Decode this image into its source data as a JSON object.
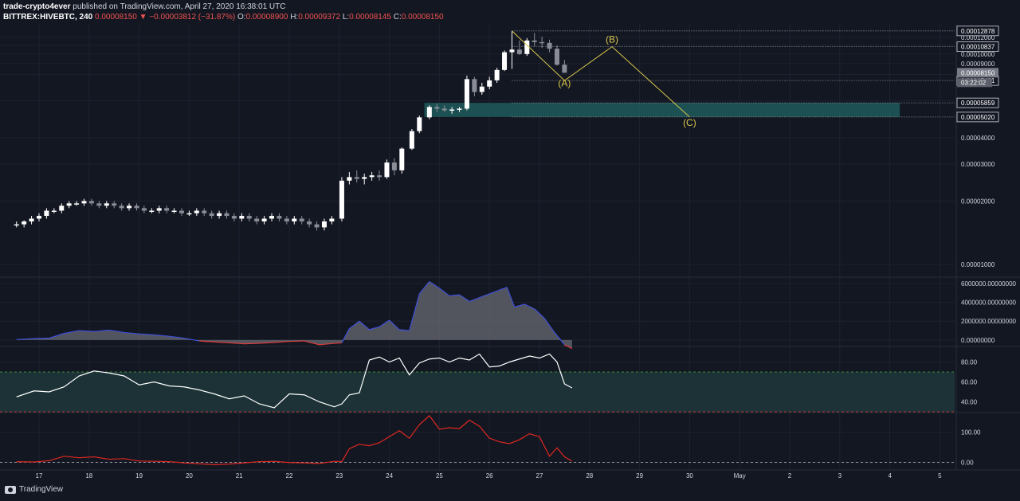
{
  "header": {
    "author": "trade-crypto4ever",
    "published": "published on TradingView.com, April 27, 2020 16:38:01 UTC",
    "symbol": "BITTREX:HIVEBTC, 240",
    "last": "0.00008150",
    "change": "−0.00003812 (−31.87%)",
    "o_label": "O:",
    "o": "0.00008900",
    "h_label": "H:",
    "h": "0.00009372",
    "l_label": "L:",
    "l": "0.00008145",
    "c_label": "C:",
    "c": "0.00008150"
  },
  "footer": {
    "brand": "TradingView"
  },
  "colors": {
    "background": "#131722",
    "grid": "#1e2230",
    "candle_up": "#ffffff",
    "candle_down": "#8a8d96",
    "wave": "#d9c64b",
    "zone": "#1e5a5c",
    "macd_area": "#5f6068",
    "macd_pos_line": "#3f4fd8",
    "macd_neg_line": "#e03a3a",
    "rsi_line": "#ffffff",
    "rsi_band": "#1c3236",
    "rsi_upper": "#3e8a3a",
    "rsi_lower": "#b83434",
    "osc_line": "#e0271f"
  },
  "chart_data": [
    {
      "type": "candlestick",
      "name": "price",
      "y_axis_labels": [
        "0.00012000",
        "0.00011000",
        "0.00010000",
        "0.00009000",
        "0.00008000",
        "0.00006000",
        "0.00004000",
        "0.00003000",
        "0.00002000",
        "0.00001000"
      ],
      "y_axis_values": [
        12,
        11,
        10,
        9,
        8,
        6,
        4,
        3,
        2,
        1
      ],
      "ylim": [
        0.9,
        13.2
      ],
      "x_labels": [
        "17",
        "18",
        "19",
        "20",
        "21",
        "22",
        "23",
        "24",
        "25",
        "26",
        "27",
        "28",
        "29",
        "30",
        "May",
        "2",
        "3",
        "4",
        "5"
      ],
      "last_price_label": "0.00008150",
      "countdown": "03:22:02",
      "levels": [
        {
          "value": 12.878,
          "label": "0.00012878"
        },
        {
          "value": 10.837,
          "label": "0.00010837"
        },
        {
          "value": 7.481,
          "label": "0.00007481"
        },
        {
          "value": 5.859,
          "label": "0.00005859"
        },
        {
          "value": 5.02,
          "label": "0.00005020"
        }
      ],
      "zone": {
        "from": 5.02,
        "to": 5.859,
        "start_day": 24.7,
        "end_day": 34.2
      },
      "wave_points": [
        {
          "day": 26.45,
          "value": 12.878
        },
        {
          "day": 27.5,
          "value": 7.481
        },
        {
          "day": 28.45,
          "value": 10.837
        },
        {
          "day": 30.0,
          "value": 5.02
        }
      ],
      "wave_labels": [
        {
          "text": "(A)",
          "day": 27.5,
          "value": 7.0
        },
        {
          "text": "(B)",
          "day": 28.45,
          "value": 11.35
        },
        {
          "text": "(C)",
          "day": 30.0,
          "value": 4.55
        }
      ],
      "candles": [
        [
          16.55,
          1.55,
          1.6,
          1.5,
          1.55
        ],
        [
          16.7,
          1.55,
          1.62,
          1.5,
          1.6
        ],
        [
          16.85,
          1.6,
          1.7,
          1.55,
          1.65
        ],
        [
          17.0,
          1.65,
          1.75,
          1.6,
          1.7
        ],
        [
          17.15,
          1.7,
          1.85,
          1.65,
          1.8
        ],
        [
          17.3,
          1.8,
          1.85,
          1.75,
          1.8
        ],
        [
          17.45,
          1.8,
          1.95,
          1.75,
          1.9
        ],
        [
          17.6,
          1.9,
          2.0,
          1.85,
          1.95
        ],
        [
          17.75,
          1.95,
          2.0,
          1.9,
          1.95
        ],
        [
          17.9,
          1.95,
          2.05,
          1.9,
          2.0
        ],
        [
          18.05,
          2.0,
          2.05,
          1.9,
          1.95
        ],
        [
          18.2,
          1.95,
          2.0,
          1.85,
          1.9
        ],
        [
          18.35,
          1.9,
          2.0,
          1.85,
          1.95
        ],
        [
          18.5,
          1.95,
          2.0,
          1.85,
          1.9
        ],
        [
          18.65,
          1.9,
          1.95,
          1.8,
          1.85
        ],
        [
          18.8,
          1.85,
          1.95,
          1.8,
          1.9
        ],
        [
          18.95,
          1.9,
          1.95,
          1.8,
          1.85
        ],
        [
          19.1,
          1.85,
          1.9,
          1.75,
          1.8
        ],
        [
          19.25,
          1.8,
          1.85,
          1.75,
          1.8
        ],
        [
          19.4,
          1.8,
          1.9,
          1.75,
          1.85
        ],
        [
          19.55,
          1.85,
          1.9,
          1.75,
          1.8
        ],
        [
          19.7,
          1.8,
          1.85,
          1.75,
          1.8
        ],
        [
          19.85,
          1.8,
          1.85,
          1.7,
          1.75
        ],
        [
          20.0,
          1.75,
          1.8,
          1.7,
          1.75
        ],
        [
          20.15,
          1.75,
          1.85,
          1.7,
          1.8
        ],
        [
          20.3,
          1.8,
          1.85,
          1.7,
          1.75
        ],
        [
          20.45,
          1.75,
          1.8,
          1.65,
          1.7
        ],
        [
          20.6,
          1.7,
          1.8,
          1.65,
          1.75
        ],
        [
          20.75,
          1.75,
          1.8,
          1.65,
          1.7
        ],
        [
          20.9,
          1.7,
          1.75,
          1.6,
          1.65
        ],
        [
          21.05,
          1.65,
          1.75,
          1.6,
          1.7
        ],
        [
          21.2,
          1.7,
          1.75,
          1.6,
          1.65
        ],
        [
          21.35,
          1.65,
          1.7,
          1.55,
          1.6
        ],
        [
          21.5,
          1.6,
          1.7,
          1.55,
          1.65
        ],
        [
          21.65,
          1.65,
          1.75,
          1.6,
          1.7
        ],
        [
          21.8,
          1.7,
          1.75,
          1.6,
          1.65
        ],
        [
          21.95,
          1.65,
          1.7,
          1.55,
          1.6
        ],
        [
          22.1,
          1.6,
          1.7,
          1.55,
          1.65
        ],
        [
          22.25,
          1.65,
          1.7,
          1.55,
          1.6
        ],
        [
          22.4,
          1.6,
          1.65,
          1.5,
          1.55
        ],
        [
          22.55,
          1.55,
          1.6,
          1.45,
          1.5
        ],
        [
          22.7,
          1.5,
          1.65,
          1.45,
          1.6
        ],
        [
          22.85,
          1.6,
          1.7,
          1.55,
          1.65
        ],
        [
          23.05,
          1.65,
          2.6,
          1.6,
          2.5
        ],
        [
          23.2,
          2.5,
          2.75,
          2.4,
          2.6
        ],
        [
          23.35,
          2.6,
          2.8,
          2.45,
          2.55
        ],
        [
          23.5,
          2.55,
          2.7,
          2.4,
          2.6
        ],
        [
          23.65,
          2.6,
          2.75,
          2.5,
          2.65
        ],
        [
          23.8,
          2.65,
          2.8,
          2.5,
          2.6
        ],
        [
          23.95,
          2.6,
          3.15,
          2.55,
          3.05
        ],
        [
          24.1,
          3.05,
          3.2,
          2.65,
          2.8
        ],
        [
          24.25,
          2.8,
          3.6,
          2.7,
          3.55
        ],
        [
          24.45,
          3.55,
          4.4,
          3.5,
          4.3
        ],
        [
          24.6,
          4.3,
          5.1,
          4.2,
          5.0
        ],
        [
          24.8,
          5.0,
          5.7,
          4.9,
          5.6
        ],
        [
          24.95,
          5.6,
          5.8,
          5.3,
          5.5
        ],
        [
          25.1,
          5.5,
          5.7,
          5.3,
          5.4
        ],
        [
          25.25,
          5.4,
          5.6,
          5.2,
          5.45
        ],
        [
          25.4,
          5.45,
          5.6,
          5.3,
          5.5
        ],
        [
          25.55,
          5.5,
          7.9,
          5.4,
          7.6
        ],
        [
          25.7,
          7.6,
          7.8,
          6.3,
          6.6
        ],
        [
          25.85,
          6.6,
          7.3,
          6.4,
          7.0
        ],
        [
          26.0,
          7.0,
          7.8,
          6.8,
          7.5
        ],
        [
          26.15,
          7.5,
          8.6,
          7.3,
          8.4
        ],
        [
          26.3,
          8.4,
          10.4,
          8.3,
          10.2
        ],
        [
          26.45,
          10.2,
          12.878,
          8.5,
          10.5
        ],
        [
          26.6,
          10.5,
          11.6,
          9.9,
          10.0
        ],
        [
          26.75,
          10.0,
          11.9,
          9.8,
          11.6
        ],
        [
          26.9,
          11.6,
          12.6,
          10.9,
          11.4
        ],
        [
          27.05,
          11.4,
          12.1,
          10.7,
          11.3
        ],
        [
          27.2,
          11.3,
          11.7,
          10.2,
          10.6
        ],
        [
          27.35,
          10.6,
          11.0,
          8.8,
          8.9
        ],
        [
          27.5,
          8.9,
          9.372,
          8.145,
          8.15
        ]
      ]
    },
    {
      "type": "area",
      "name": "volume-oscillator",
      "y_axis_labels": [
        "6000000.00000000",
        "4000000.00000000",
        "2000000.00000000",
        "0.00000000"
      ],
      "y_axis_values": [
        6000000,
        4000000,
        2000000,
        0
      ],
      "ylim": [
        -600000,
        6500000
      ],
      "x": [
        16.55,
        16.9,
        17.2,
        17.5,
        17.8,
        18.1,
        18.4,
        18.7,
        19.0,
        19.3,
        19.6,
        19.9,
        20.2,
        20.5,
        20.8,
        21.1,
        21.4,
        21.7,
        22.0,
        22.3,
        22.6,
        22.9,
        23.05,
        23.2,
        23.4,
        23.6,
        23.8,
        24.0,
        24.2,
        24.4,
        24.6,
        24.8,
        25.0,
        25.2,
        25.4,
        25.6,
        25.8,
        26.0,
        26.2,
        26.35,
        26.5,
        26.7,
        26.9,
        27.1,
        27.3,
        27.5,
        27.65
      ],
      "values": [
        50000,
        150000,
        200000,
        700000,
        1000000,
        900000,
        1050000,
        800000,
        650000,
        550000,
        400000,
        200000,
        -100000,
        -200000,
        -300000,
        -400000,
        -350000,
        -250000,
        -150000,
        -100000,
        -500000,
        -350000,
        -300000,
        1200000,
        2000000,
        1100000,
        1400000,
        2100000,
        1100000,
        1000000,
        4900000,
        6200000,
        5500000,
        4700000,
        4800000,
        4100000,
        4500000,
        4900000,
        5300000,
        5600000,
        3500000,
        3800000,
        3300000,
        2300000,
        800000,
        -500000,
        -900000
      ]
    },
    {
      "type": "line",
      "name": "rsi",
      "y_axis_labels": [
        "80.00",
        "60.00",
        "40.00"
      ],
      "y_axis_values": [
        80,
        60,
        40
      ],
      "ylim": [
        30,
        94
      ],
      "bands": [
        70,
        30
      ],
      "x": [
        16.55,
        16.9,
        17.2,
        17.5,
        17.8,
        18.1,
        18.4,
        18.7,
        19.0,
        19.3,
        19.6,
        19.9,
        20.2,
        20.5,
        20.8,
        21.1,
        21.4,
        21.7,
        22.0,
        22.3,
        22.6,
        22.9,
        23.05,
        23.2,
        23.4,
        23.6,
        23.8,
        24.0,
        24.2,
        24.4,
        24.6,
        24.8,
        25.0,
        25.2,
        25.4,
        25.6,
        25.8,
        26.0,
        26.2,
        26.4,
        26.6,
        26.8,
        27.0,
        27.2,
        27.35,
        27.5,
        27.65
      ],
      "values": [
        45,
        51,
        50,
        55,
        66,
        71,
        69,
        66,
        57,
        60,
        56,
        55,
        52,
        48,
        43,
        46,
        38,
        34,
        48,
        47,
        40,
        35,
        38,
        47,
        49,
        82,
        85,
        80,
        84,
        67,
        79,
        83,
        84,
        80,
        84,
        82,
        88,
        75,
        76,
        80,
        83,
        86,
        84,
        88,
        80,
        58,
        54
      ]
    },
    {
      "type": "line",
      "name": "oscillator",
      "y_axis_labels": [
        "100.00",
        "0.00"
      ],
      "y_axis_values": [
        100,
        0
      ],
      "ylim": [
        -15,
        160
      ],
      "zero_line": 0,
      "x": [
        16.55,
        16.9,
        17.2,
        17.5,
        17.8,
        18.1,
        18.4,
        18.7,
        19.0,
        19.3,
        19.6,
        19.9,
        20.2,
        20.5,
        20.8,
        21.1,
        21.4,
        21.7,
        22.0,
        22.3,
        22.6,
        22.9,
        23.05,
        23.2,
        23.4,
        23.6,
        23.8,
        24.0,
        24.2,
        24.4,
        24.6,
        24.8,
        25.0,
        25.2,
        25.4,
        25.6,
        25.8,
        26.0,
        26.2,
        26.4,
        26.6,
        26.8,
        27.0,
        27.2,
        27.35,
        27.5,
        27.65
      ],
      "values": [
        2,
        1,
        5,
        20,
        15,
        18,
        10,
        12,
        4,
        3,
        2,
        -2,
        -5,
        -8,
        -6,
        -2,
        2,
        3,
        -1,
        -2,
        -4,
        3,
        2,
        45,
        60,
        55,
        65,
        85,
        105,
        80,
        125,
        155,
        110,
        115,
        112,
        140,
        120,
        80,
        68,
        62,
        75,
        95,
        85,
        20,
        48,
        18,
        4
      ]
    }
  ]
}
